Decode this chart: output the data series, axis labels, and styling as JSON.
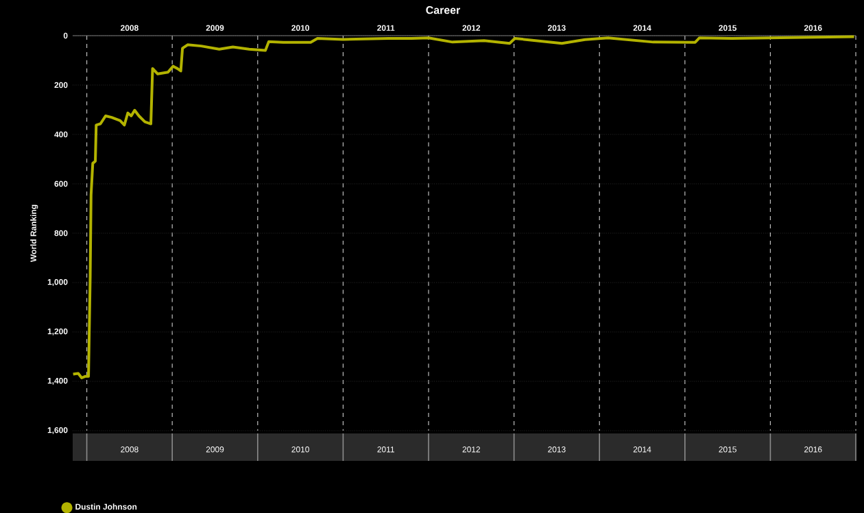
{
  "chart_data": {
    "type": "line",
    "title": "Career",
    "ylabel": "World Ranking",
    "x": [
      2007.84,
      2007.9,
      2007.94,
      2007.98,
      2008.02,
      2008.04,
      2008.05,
      2008.07,
      2008.1,
      2008.11,
      2008.16,
      2008.22,
      2008.29,
      2008.39,
      2008.44,
      2008.48,
      2008.52,
      2008.56,
      2008.61,
      2008.68,
      2008.75,
      2008.77,
      2008.83,
      2008.95,
      2009.01,
      2009.06,
      2009.1,
      2009.12,
      2009.18,
      2009.34,
      2009.55,
      2009.71,
      2009.9,
      2010.09,
      2010.13,
      2010.3,
      2010.62,
      2010.7,
      2011.0,
      2011.53,
      2011.8,
      2012.0,
      2012.28,
      2012.65,
      2012.95,
      2013.01,
      2013.56,
      2013.83,
      2014.1,
      2014.63,
      2015.12,
      2015.17,
      2015.55,
      2016.4,
      2016.98
    ],
    "series": [
      {
        "name": "Dustin Johnson",
        "color": "#b3b300",
        "values": [
          1371,
          1368,
          1386,
          1380,
          1380,
          975,
          645,
          517,
          508,
          362,
          357,
          325,
          331,
          344,
          362,
          313,
          325,
          302,
          325,
          349,
          357,
          133,
          155,
          148,
          124,
          133,
          143,
          51,
          37,
          42,
          55,
          46,
          55,
          60,
          24,
          27,
          27,
          11,
          15,
          11,
          11,
          9,
          26,
          20,
          31,
          11,
          31,
          16,
          9,
          26,
          27,
          9,
          11,
          7,
          4
        ]
      }
    ],
    "xlim": [
      2007.835,
      2017.0
    ],
    "xticks": [
      {
        "value": 2008,
        "label": null
      },
      {
        "value": 2009,
        "label": null
      },
      {
        "value": 2010,
        "label": null
      },
      {
        "value": 2011,
        "label": null
      },
      {
        "value": 2012,
        "label": null
      },
      {
        "value": 2013,
        "label": null
      },
      {
        "value": 2014,
        "label": null
      },
      {
        "value": 2015,
        "label": null
      },
      {
        "value": 2016,
        "label": null
      },
      {
        "value": 2017,
        "label": null
      },
      {
        "value": 2008.5,
        "label": "2008"
      },
      {
        "value": 2009.5,
        "label": "2009"
      },
      {
        "value": 2010.5,
        "label": "2010"
      },
      {
        "value": 2011.5,
        "label": "2011"
      },
      {
        "value": 2012.5,
        "label": "2012"
      },
      {
        "value": 2013.5,
        "label": "2013"
      },
      {
        "value": 2014.5,
        "label": "2014"
      },
      {
        "value": 2015.5,
        "label": "2015"
      },
      {
        "value": 2016.5,
        "label": "2016"
      }
    ],
    "ylim": [
      1600,
      0
    ],
    "yticks": [
      0,
      200,
      400,
      600,
      800,
      {
        "value": 1000,
        "label": "1,000"
      },
      {
        "value": 1200,
        "label": "1,200"
      },
      {
        "value": 1400,
        "label": "1,400"
      },
      {
        "value": 1600,
        "label": "1,600"
      }
    ],
    "grid": true,
    "legend": "bottom left"
  }
}
